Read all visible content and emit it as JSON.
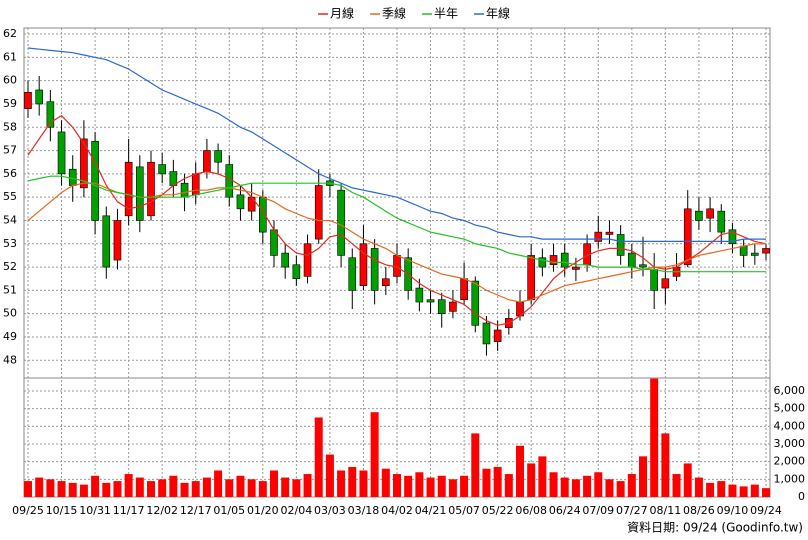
{
  "chart_data": {
    "type": "candlestick",
    "categories": [
      "09/25",
      null,
      null,
      "10/15",
      null,
      null,
      "10/31",
      null,
      null,
      "11/17",
      null,
      null,
      "12/02",
      null,
      null,
      "12/17",
      null,
      null,
      "01/05",
      null,
      null,
      "01/20",
      null,
      null,
      "02/04",
      null,
      null,
      "03/03",
      null,
      null,
      "03/18",
      null,
      null,
      "04/02",
      null,
      null,
      "04/21",
      null,
      null,
      "05/07",
      null,
      null,
      "05/22",
      null,
      null,
      "06/08",
      null,
      null,
      "06/24",
      null,
      null,
      "07/09",
      null,
      null,
      "07/27",
      null,
      null,
      "08/11",
      null,
      null,
      "08/26",
      null,
      null,
      "09/10",
      null,
      null,
      "09/24"
    ],
    "candles": {
      "up_color": "#ff0000",
      "down_color": "#00a000",
      "open": [
        58.8,
        59.6,
        59.1,
        57.8,
        56.2,
        55.4,
        57.4,
        54.2,
        52.3,
        54.2,
        56.3,
        54.2,
        56.4,
        56.1,
        55.6,
        55.1,
        56.1,
        57.0,
        56.4,
        55.1,
        54.4,
        55.0,
        53.6,
        52.6,
        52.1,
        51.6,
        53.2,
        55.7,
        55.3,
        52.4,
        51.2,
        52.8,
        51.2,
        51.6,
        52.4,
        51.1,
        50.6,
        50.6,
        50.1,
        50.6,
        51.4,
        49.6,
        48.8,
        49.4,
        49.9,
        50.6,
        52.4,
        52.1,
        52.6,
        51.9,
        52.1,
        53.1,
        53.4,
        53.4,
        52.6,
        52.1,
        51.9,
        51.1,
        51.6,
        52.1,
        54.4,
        54.1,
        54.4,
        53.6,
        52.9,
        52.6,
        52.6
      ],
      "high": [
        60.0,
        60.2,
        59.6,
        58.3,
        56.8,
        58.3,
        57.8,
        54.6,
        54.5,
        57.5,
        56.8,
        57.0,
        56.9,
        56.6,
        56.0,
        56.5,
        57.5,
        57.3,
        56.8,
        55.5,
        55.6,
        55.3,
        54.0,
        53.0,
        52.5,
        53.4,
        56.2,
        56.0,
        55.6,
        52.8,
        53.8,
        53.2,
        52.0,
        53.0,
        52.8,
        51.5,
        51.0,
        50.9,
        51.0,
        52.2,
        51.6,
        49.9,
        49.7,
        50.2,
        51.0,
        53.0,
        52.8,
        53.0,
        53.0,
        52.4,
        53.4,
        54.2,
        54.0,
        53.8,
        53.0,
        53.3,
        52.6,
        52.0,
        52.6,
        55.3,
        55.0,
        55.0,
        54.7,
        53.9,
        53.2,
        53.0,
        53.0
      ],
      "low": [
        58.4,
        58.5,
        57.4,
        55.5,
        54.8,
        55.0,
        53.4,
        51.5,
        51.9,
        53.8,
        53.5,
        54.0,
        55.6,
        55.0,
        54.4,
        54.7,
        55.8,
        56.0,
        54.6,
        54.0,
        54.0,
        53.0,
        52.0,
        51.5,
        51.2,
        51.3,
        53.0,
        55.0,
        52.0,
        50.2,
        51.0,
        50.4,
        50.8,
        51.3,
        50.6,
        50.1,
        50.0,
        49.4,
        49.8,
        50.4,
        49.2,
        48.2,
        48.4,
        49.1,
        49.7,
        50.4,
        51.6,
        51.8,
        51.6,
        51.4,
        51.8,
        52.8,
        53.0,
        52.1,
        51.5,
        51.6,
        50.2,
        50.4,
        51.4,
        52.0,
        53.6,
        53.5,
        53.0,
        52.6,
        52.0,
        52.1,
        52.3
      ],
      "close": [
        59.5,
        59,
        58,
        56,
        55.5,
        57.5,
        54,
        52,
        54,
        56.5,
        54,
        56.5,
        56,
        55.5,
        55,
        56,
        57,
        56.5,
        55,
        54.5,
        55,
        53.5,
        52.5,
        52,
        51.5,
        53,
        55.5,
        55.5,
        52.5,
        51,
        53,
        51,
        51.5,
        52.5,
        51,
        50.5,
        50.5,
        50,
        50.5,
        51.5,
        49.5,
        48.7,
        49.3,
        49.8,
        50.5,
        52.5,
        52,
        52.5,
        52,
        52,
        53,
        53.5,
        53.5,
        52.5,
        52,
        52,
        51,
        51.5,
        52,
        54.5,
        54,
        54.5,
        53.5,
        53,
        52.5,
        52.5,
        52.8
      ]
    },
    "series": [
      {
        "name": "月線",
        "color": "#e8281e",
        "values": [
          56.8,
          57.5,
          58.2,
          58.5,
          58.0,
          57.3,
          56.5,
          55.5,
          54.8,
          54.5,
          54.6,
          54.8,
          55.1,
          55.5,
          55.8,
          56.0,
          56.1,
          56.0,
          55.8,
          55.5,
          55.0,
          54.4,
          53.6,
          53.0,
          52.6,
          52.5,
          52.8,
          53.3,
          53.4,
          53.0,
          52.6,
          52.3,
          52.1,
          52.0,
          51.7,
          51.3,
          51.0,
          50.8,
          50.6,
          50.4,
          50.0,
          49.7,
          49.5,
          49.6,
          49.9,
          50.3,
          50.9,
          51.5,
          51.9,
          52.2,
          52.5,
          52.7,
          52.8,
          52.8,
          52.7,
          52.4,
          52.0,
          51.9,
          52.0,
          52.3,
          52.6,
          53.0,
          53.4,
          53.5,
          53.3,
          53.1,
          53.0
        ]
      },
      {
        "name": "季線",
        "color": "#e06a1e",
        "values": [
          54.0,
          54.4,
          54.8,
          55.2,
          55.5,
          55.6,
          55.6,
          55.4,
          55.2,
          55.1,
          55.0,
          55.0,
          55.1,
          55.1,
          55.2,
          55.3,
          55.3,
          55.4,
          55.4,
          55.3,
          55.2,
          55.0,
          54.8,
          54.5,
          54.3,
          54.1,
          54.0,
          54.0,
          53.8,
          53.5,
          53.2,
          53.0,
          52.8,
          52.5,
          52.3,
          52.1,
          51.9,
          51.7,
          51.6,
          51.5,
          51.3,
          51.0,
          50.8,
          50.6,
          50.5,
          50.6,
          50.8,
          51.0,
          51.2,
          51.3,
          51.4,
          51.5,
          51.6,
          51.7,
          51.8,
          51.9,
          52.0,
          52.0,
          52.1,
          52.3,
          52.5,
          52.6,
          52.7,
          52.8,
          52.9,
          53.0,
          53.0
        ]
      },
      {
        "name": "半年",
        "color": "#22c322",
        "values": [
          55.7,
          55.8,
          55.9,
          55.9,
          55.8,
          55.7,
          55.5,
          55.3,
          55.2,
          55.1,
          55.0,
          55.0,
          55.0,
          55.0,
          55.0,
          55.1,
          55.2,
          55.3,
          55.4,
          55.5,
          55.6,
          55.6,
          55.6,
          55.6,
          55.6,
          55.6,
          55.6,
          55.6,
          55.5,
          55.2,
          55.0,
          54.7,
          54.4,
          54.1,
          53.9,
          53.7,
          53.5,
          53.4,
          53.3,
          53.2,
          53.0,
          52.9,
          52.8,
          52.6,
          52.5,
          52.4,
          52.3,
          52.2,
          52.2,
          52.1,
          52.1,
          52.0,
          52.0,
          52.0,
          52.0,
          51.9,
          51.9,
          51.8,
          51.8,
          51.8,
          51.8,
          51.8,
          51.8,
          51.8,
          51.8,
          51.8,
          51.8
        ]
      },
      {
        "name": "年線",
        "color": "#2a6ad0",
        "values": [
          61.4,
          61.35,
          61.3,
          61.25,
          61.2,
          61.1,
          61.0,
          60.9,
          60.7,
          60.5,
          60.2,
          59.9,
          59.6,
          59.4,
          59.2,
          59.0,
          58.8,
          58.6,
          58.3,
          58.0,
          57.8,
          57.5,
          57.2,
          56.9,
          56.6,
          56.3,
          56.0,
          55.8,
          55.6,
          55.4,
          55.3,
          55.2,
          55.1,
          55.0,
          54.8,
          54.6,
          54.4,
          54.3,
          54.1,
          54.0,
          53.8,
          53.7,
          53.5,
          53.4,
          53.3,
          53.3,
          53.2,
          53.2,
          53.2,
          53.2,
          53.2,
          53.2,
          53.2,
          53.1,
          53.1,
          53.1,
          53.1,
          53.1,
          53.1,
          53.1,
          53.1,
          53.1,
          53.1,
          53.1,
          53.2,
          53.2,
          53.2
        ]
      }
    ],
    "volume": {
      "axis": "y2",
      "color": "#ff0000",
      "values": [
        900,
        1100,
        1000,
        900,
        800,
        700,
        1200,
        800,
        900,
        1300,
        1100,
        900,
        1000,
        1200,
        800,
        900,
        1100,
        1500,
        1000,
        1200,
        1000,
        900,
        1500,
        1100,
        1000,
        1300,
        4500,
        2400,
        1500,
        1700,
        1500,
        4800,
        1600,
        1300,
        1200,
        1400,
        1100,
        1200,
        1000,
        1200,
        3600,
        1600,
        1700,
        1300,
        2900,
        1900,
        2300,
        1400,
        1100,
        1000,
        1200,
        1400,
        1000,
        900,
        1300,
        2300,
        6700,
        3600,
        1300,
        1900,
        1100,
        800,
        900,
        700,
        600,
        700,
        500
      ]
    },
    "ylim": [
      47.24,
      62.26
    ],
    "yticks": [
      48,
      49,
      50,
      51,
      52,
      53,
      54,
      55,
      56,
      57,
      58,
      59,
      60,
      61,
      62
    ],
    "y2lim": [
      0,
      6735
    ],
    "y2ticks": [
      0,
      {
        "value": 1000,
        "label": "1,000"
      },
      {
        "value": 2000,
        "label": "2,000"
      },
      {
        "value": 3000,
        "label": "3,000"
      },
      {
        "value": 4000,
        "label": "4,000"
      },
      {
        "value": 5000,
        "label": "5,000"
      },
      {
        "value": 6000,
        "label": "6,000"
      }
    ],
    "grid": true,
    "footnote": "資料日期: 09/24 (Goodinfo.tw)"
  }
}
